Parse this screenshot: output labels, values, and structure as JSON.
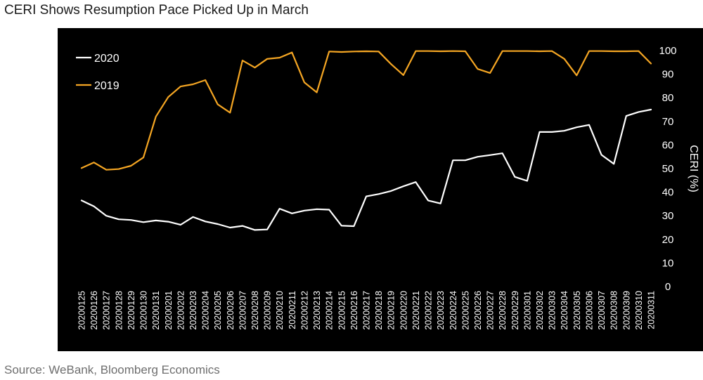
{
  "header": {
    "title": "CERI Shows Resumption Pace Picked Up in March"
  },
  "footer": {
    "source": "Source: WeBank, Bloomberg Economics"
  },
  "colors": {
    "background": "#000000",
    "series_2020": "#ffffff",
    "series_2019": "#f5a623",
    "text": "#ffffff"
  },
  "chart_data": {
    "type": "line",
    "title": "",
    "xlabel": "",
    "ylabel": "CERI (%)",
    "ylim": [
      0,
      100
    ],
    "yticks": [
      0,
      10,
      20,
      30,
      40,
      50,
      60,
      70,
      80,
      90,
      100
    ],
    "grid": false,
    "legend_position": "top-left",
    "categories": [
      "20200125",
      "20200126",
      "20200127",
      "20200128",
      "20200129",
      "20200130",
      "20200131",
      "20200201",
      "20200202",
      "20200203",
      "20200204",
      "20200205",
      "20200206",
      "20200207",
      "20200208",
      "20200209",
      "20200210",
      "20200211",
      "20200212",
      "20200213",
      "20200214",
      "20200215",
      "20200216",
      "20200217",
      "20200218",
      "20200219",
      "20200220",
      "20200221",
      "20200222",
      "20200223",
      "20200224",
      "20200225",
      "20200226",
      "20200227",
      "20200228",
      "20200229",
      "20200301",
      "20200302",
      "20200303",
      "20200304",
      "20200305",
      "20200306",
      "20200307",
      "20200308",
      "20200309",
      "20200310",
      "20200311"
    ],
    "series": [
      {
        "name": "2020",
        "color": "#ffffff",
        "values": [
          36.5,
          34,
          30,
          28.5,
          28.2,
          27.3,
          28,
          27.5,
          26.2,
          29.5,
          27.6,
          26.5,
          25,
          25.7,
          24,
          24.2,
          33,
          31,
          32.2,
          32.8,
          32.6,
          25.8,
          25.6,
          38.2,
          39.2,
          40.5,
          42.5,
          44.3,
          36.5,
          35.2,
          53.5,
          53.5,
          55,
          55.7,
          56.5,
          46.5,
          44.8,
          65.5,
          65.5,
          66,
          67.5,
          68.5,
          55.8,
          52,
          72.3,
          74,
          75
        ]
      },
      {
        "name": "2019",
        "color": "#f5a623",
        "values": [
          50.2,
          52.6,
          49.5,
          49.8,
          51.2,
          54.7,
          72,
          80.3,
          84.8,
          85.7,
          87.5,
          77.2,
          73.7,
          95.8,
          92.8,
          96.5,
          97,
          99.2,
          86.5,
          82.3,
          99.6,
          99.4,
          99.6,
          99.7,
          99.6,
          94.3,
          89.6,
          99.8,
          99.8,
          99.7,
          99.8,
          99.7,
          92.2,
          90.5,
          99.8,
          99.8,
          99.8,
          99.7,
          99.8,
          96.5,
          89.5,
          99.8,
          99.8,
          99.7,
          99.7,
          99.8,
          94.5
        ]
      }
    ]
  }
}
